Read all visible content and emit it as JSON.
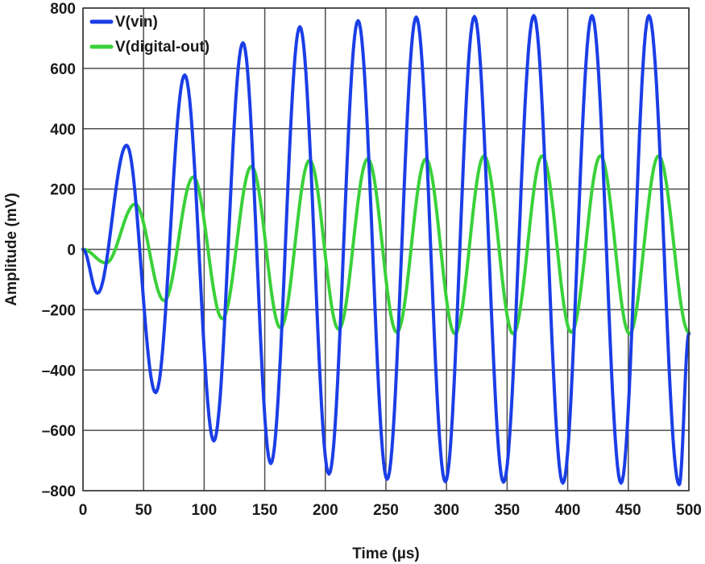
{
  "chart_data": {
    "type": "line",
    "title": "",
    "xlabel": "Time (µs)",
    "ylabel": "Amplitude (mV)",
    "xlim": [
      0,
      500
    ],
    "ylim": [
      -800,
      800
    ],
    "x_ticks": [
      "0",
      "50",
      "100",
      "150",
      "200",
      "250",
      "300",
      "350",
      "400",
      "450",
      "500"
    ],
    "y_ticks": [
      "800",
      "600",
      "400",
      "200",
      "0",
      "–200",
      "–400",
      "–600",
      "–800"
    ],
    "grid": true,
    "legend_position": "top-left",
    "series": [
      {
        "name": "V(vin)",
        "color": "#1a3ee6",
        "x": [
          0,
          12,
          36,
          60,
          84,
          108,
          132,
          155,
          179,
          203,
          227,
          251,
          275,
          299,
          323,
          347,
          372,
          396,
          420,
          444,
          467,
          492,
          500
        ],
        "y": [
          0,
          -145,
          345,
          -475,
          578,
          -635,
          685,
          -710,
          738,
          -745,
          758,
          -762,
          770,
          -770,
          772,
          -772,
          775,
          -775,
          775,
          -775,
          775,
          -780,
          -280
        ]
      },
      {
        "name": "V(digital-out)",
        "color": "#3ad13a",
        "x": [
          0,
          19,
          43,
          67,
          91,
          115,
          139,
          163,
          187,
          211,
          235,
          259,
          283,
          307,
          331,
          355,
          379,
          403,
          427,
          451,
          475,
          500
        ],
        "y": [
          0,
          -45,
          150,
          -170,
          240,
          -230,
          275,
          -260,
          295,
          -265,
          300,
          -275,
          300,
          -280,
          310,
          -280,
          310,
          -275,
          310,
          -280,
          310,
          -275
        ]
      }
    ]
  }
}
